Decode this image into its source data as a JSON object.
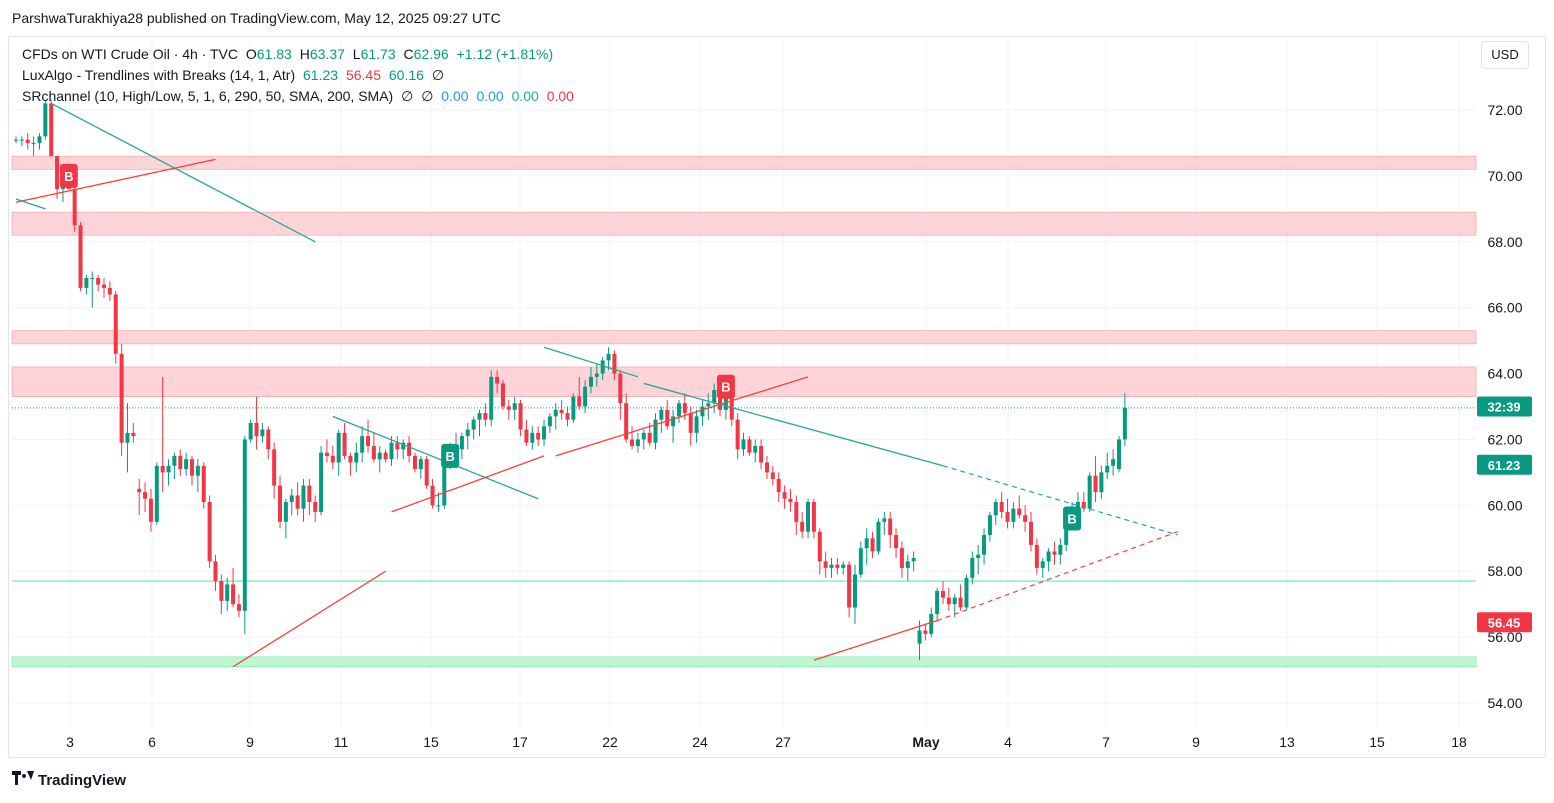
{
  "header": {
    "publish_line": "ParshwaTurakhiya28 published on TradingView.com, May 12, 2025 09:27 UTC"
  },
  "legend": {
    "symbol": "CFDs on WTI Crude Oil · 4h · TVC",
    "open_label": "O",
    "open": "61.83",
    "high_label": "H",
    "high": "63.37",
    "low_label": "L",
    "low": "61.73",
    "close_label": "C",
    "close": "62.96",
    "change": "+1.12 (+1.81%)",
    "ind1_name": "LuxAlgo - Trendlines with Breaks (14, 1, Atr)",
    "ind1_v1": "61.23",
    "ind1_v2": "56.45",
    "ind1_v3": "60.16",
    "ind1_v4": "∅",
    "ind2_name": "SRchannel (10, High/Low, 5, 1, 6, 290, 50, SMA, 200, SMA)",
    "ind2_v1": "∅",
    "ind2_v2": "∅",
    "ind2_v3": "0.00",
    "ind2_v4": "0.00",
    "ind2_v5": "0.00",
    "ind2_v6": "0.00"
  },
  "currency": "USD",
  "footer": {
    "brand": "TradingView"
  },
  "colors": {
    "up": "#089981",
    "down": "#f23645",
    "resistance_zone": "#ffcdd2",
    "support_zone": "#b9f6ca",
    "trend_green": "#26a69a",
    "trend_red": "#f44336",
    "grid": "#f0f3fa"
  },
  "chart_data": {
    "type": "candlestick",
    "timeframe": "4h",
    "currency": "USD",
    "y_ticks": [
      "72.00",
      "70.00",
      "68.00",
      "66.00",
      "64.00",
      "62.00",
      "60.00",
      "58.00",
      "56.00",
      "54.00"
    ],
    "x_ticks": [
      "3",
      "6",
      "9",
      "11",
      "15",
      "17",
      "22",
      "24",
      "27",
      "May",
      "4",
      "7",
      "9",
      "13",
      "15",
      "18"
    ],
    "price_labels": [
      {
        "text": "32:39",
        "value": 63.0,
        "color": "#089981"
      },
      {
        "text": "61.23",
        "value": 61.23,
        "color": "#089981"
      },
      {
        "text": "56.45",
        "value": 56.45,
        "color": "#f23645"
      }
    ],
    "last_price": 62.96,
    "resistance_zones": [
      [
        70.2,
        70.6
      ],
      [
        68.2,
        68.9
      ],
      [
        64.9,
        65.3
      ],
      [
        63.3,
        64.2
      ]
    ],
    "support_zones": [
      [
        55.1,
        55.4
      ]
    ],
    "support_lines": [
      57.7
    ],
    "break_signals": [
      {
        "label": "B",
        "type": "bearish",
        "index": 9,
        "price": 70.0
      },
      {
        "label": "B",
        "type": "bullish",
        "index": 74,
        "price": 61.5
      },
      {
        "label": "B",
        "type": "bearish",
        "index": 121,
        "price": 63.6
      },
      {
        "label": "B",
        "type": "bullish",
        "index": 180,
        "price": 59.6
      }
    ],
    "candles": [
      [
        71.1,
        71.2,
        71.0,
        71.1
      ],
      [
        71.1,
        71.2,
        70.9,
        71.1
      ],
      [
        71.1,
        71.3,
        70.8,
        71.0
      ],
      [
        71.0,
        71.2,
        70.6,
        71.0
      ],
      [
        71.0,
        71.3,
        70.8,
        71.2
      ],
      [
        71.2,
        72.3,
        71.1,
        72.2
      ],
      [
        72.2,
        72.3,
        70.6,
        70.6
      ],
      [
        70.6,
        70.6,
        69.3,
        69.6
      ],
      [
        69.6,
        70.2,
        69.2,
        70.1
      ],
      [
        70.1,
        70.1,
        69.6,
        69.6
      ],
      [
        69.6,
        69.8,
        68.3,
        68.5
      ],
      [
        68.5,
        68.6,
        66.5,
        66.6
      ],
      [
        66.6,
        67.0,
        66.4,
        66.9
      ],
      [
        66.9,
        67.1,
        66.0,
        66.9
      ],
      [
        66.9,
        67.0,
        66.5,
        66.7
      ],
      [
        66.7,
        66.9,
        66.3,
        66.6
      ],
      [
        66.6,
        66.8,
        66.2,
        66.4
      ],
      [
        66.4,
        66.5,
        64.3,
        64.6
      ],
      [
        64.6,
        64.9,
        61.5,
        61.9
      ],
      [
        61.9,
        63.1,
        61.0,
        62.2
      ],
      [
        62.2,
        62.5,
        61.9,
        62.1
      ],
      [
        60.5,
        60.8,
        59.7,
        60.4
      ],
      [
        60.4,
        60.7,
        59.8,
        60.2
      ],
      [
        60.2,
        60.5,
        59.2,
        59.5
      ],
      [
        59.5,
        61.3,
        59.4,
        61.2
      ],
      [
        61.2,
        63.9,
        60.4,
        61.0
      ],
      [
        61.0,
        61.4,
        60.6,
        61.2
      ],
      [
        61.2,
        61.6,
        60.8,
        61.5
      ],
      [
        61.5,
        61.7,
        60.9,
        61.1
      ],
      [
        61.1,
        61.6,
        60.9,
        61.4
      ],
      [
        61.4,
        61.5,
        60.6,
        60.9
      ],
      [
        60.9,
        61.4,
        60.4,
        61.2
      ],
      [
        61.2,
        61.3,
        59.9,
        60.1
      ],
      [
        60.1,
        60.3,
        58.1,
        58.3
      ],
      [
        58.3,
        58.5,
        57.4,
        57.7
      ],
      [
        57.7,
        57.9,
        56.7,
        57.1
      ],
      [
        57.1,
        57.8,
        56.8,
        57.6
      ],
      [
        57.6,
        58.1,
        56.9,
        57.0
      ],
      [
        57.0,
        57.3,
        56.6,
        56.8
      ],
      [
        56.8,
        62.1,
        56.1,
        62.0
      ],
      [
        62.0,
        62.6,
        61.9,
        62.5
      ],
      [
        62.5,
        63.3,
        61.7,
        62.1
      ],
      [
        62.1,
        62.5,
        61.9,
        62.3
      ],
      [
        62.3,
        62.4,
        61.4,
        61.7
      ],
      [
        61.7,
        61.9,
        60.2,
        60.6
      ],
      [
        60.6,
        60.9,
        59.3,
        59.5
      ],
      [
        59.5,
        60.2,
        59.0,
        60.1
      ],
      [
        60.1,
        60.5,
        59.7,
        60.3
      ],
      [
        60.3,
        60.7,
        59.7,
        59.9
      ],
      [
        59.9,
        60.8,
        59.5,
        60.6
      ],
      [
        60.6,
        60.8,
        59.7,
        60.1
      ],
      [
        60.1,
        60.3,
        59.5,
        59.8
      ],
      [
        59.8,
        61.8,
        59.7,
        61.6
      ],
      [
        61.6,
        62.0,
        61.3,
        61.5
      ],
      [
        61.5,
        61.8,
        61.1,
        61.3
      ],
      [
        61.3,
        62.3,
        60.9,
        62.2
      ],
      [
        62.2,
        62.5,
        61.4,
        61.5
      ],
      [
        61.5,
        61.6,
        60.9,
        61.3
      ],
      [
        61.3,
        61.9,
        61.0,
        61.6
      ],
      [
        61.6,
        62.4,
        61.3,
        62.1
      ],
      [
        62.1,
        62.6,
        61.6,
        61.8
      ],
      [
        61.8,
        62.2,
        61.3,
        61.4
      ],
      [
        61.4,
        61.8,
        61.0,
        61.6
      ],
      [
        61.6,
        61.7,
        61.3,
        61.4
      ],
      [
        61.4,
        62.1,
        61.2,
        61.9
      ],
      [
        61.9,
        62.1,
        61.4,
        61.7
      ],
      [
        61.7,
        62.0,
        61.4,
        61.9
      ],
      [
        61.9,
        62.1,
        61.3,
        61.5
      ],
      [
        61.5,
        61.6,
        61.0,
        61.1
      ],
      [
        61.1,
        61.5,
        60.8,
        61.4
      ],
      [
        61.4,
        61.5,
        60.5,
        60.6
      ],
      [
        60.6,
        60.8,
        59.9,
        60.0
      ],
      [
        60.0,
        60.4,
        59.8,
        60.0
      ],
      [
        60.0,
        61.4,
        59.9,
        61.3
      ],
      [
        61.3,
        61.9,
        61.1,
        61.8
      ],
      [
        61.8,
        62.2,
        61.3,
        61.7
      ],
      [
        61.7,
        62.2,
        61.4,
        62.1
      ],
      [
        62.1,
        62.5,
        61.7,
        62.3
      ],
      [
        62.3,
        62.7,
        62.0,
        62.6
      ],
      [
        62.6,
        62.9,
        62.1,
        62.8
      ],
      [
        62.8,
        63.1,
        62.4,
        62.6
      ],
      [
        62.6,
        64.1,
        62.4,
        63.9
      ],
      [
        63.9,
        64.1,
        63.4,
        63.7
      ],
      [
        63.7,
        63.8,
        62.9,
        63.0
      ],
      [
        63.0,
        63.2,
        62.6,
        62.9
      ],
      [
        62.9,
        63.3,
        62.6,
        63.1
      ],
      [
        63.1,
        63.2,
        62.1,
        62.3
      ],
      [
        62.3,
        62.6,
        61.8,
        61.9
      ],
      [
        61.9,
        62.4,
        61.7,
        62.2
      ],
      [
        62.2,
        62.4,
        61.8,
        62.0
      ],
      [
        62.0,
        62.6,
        61.8,
        62.4
      ],
      [
        62.4,
        62.8,
        62.2,
        62.7
      ],
      [
        62.7,
        63.1,
        62.3,
        62.9
      ],
      [
        62.9,
        63.2,
        62.6,
        62.8
      ],
      [
        62.8,
        63.0,
        62.4,
        62.6
      ],
      [
        62.6,
        63.4,
        62.5,
        63.3
      ],
      [
        63.3,
        63.9,
        62.9,
        63.0
      ],
      [
        63.0,
        63.8,
        62.8,
        63.6
      ],
      [
        63.6,
        64.2,
        63.4,
        63.9
      ],
      [
        63.9,
        64.3,
        63.6,
        64.0
      ],
      [
        64.0,
        64.5,
        63.8,
        64.4
      ],
      [
        64.4,
        64.8,
        64.1,
        64.6
      ],
      [
        64.6,
        64.7,
        63.8,
        64.0
      ],
      [
        64.0,
        64.1,
        62.6,
        63.1
      ],
      [
        63.1,
        63.4,
        61.9,
        62.0
      ],
      [
        62.0,
        62.4,
        61.7,
        61.8
      ],
      [
        61.8,
        62.2,
        61.6,
        62.0
      ],
      [
        62.0,
        62.3,
        61.7,
        62.2
      ],
      [
        62.2,
        62.5,
        61.8,
        61.9
      ],
      [
        61.9,
        62.8,
        61.7,
        62.6
      ],
      [
        62.6,
        63.0,
        62.2,
        62.9
      ],
      [
        62.9,
        63.2,
        62.3,
        62.4
      ],
      [
        62.4,
        62.9,
        61.9,
        62.7
      ],
      [
        62.7,
        63.2,
        62.5,
        63.1
      ],
      [
        63.1,
        63.4,
        62.6,
        62.8
      ],
      [
        62.8,
        63.0,
        61.8,
        62.2
      ],
      [
        62.2,
        62.9,
        61.9,
        62.7
      ],
      [
        62.7,
        63.2,
        62.4,
        63.0
      ],
      [
        63.0,
        63.4,
        62.6,
        63.1
      ],
      [
        63.1,
        63.7,
        62.8,
        63.5
      ],
      [
        63.5,
        63.6,
        62.7,
        62.9
      ],
      [
        62.9,
        63.5,
        62.6,
        63.3
      ],
      [
        63.3,
        63.6,
        62.4,
        62.6
      ],
      [
        62.6,
        62.8,
        61.4,
        61.7
      ],
      [
        61.7,
        62.2,
        61.5,
        62.0
      ],
      [
        62.0,
        62.1,
        61.5,
        61.6
      ],
      [
        61.6,
        62.0,
        61.3,
        61.8
      ],
      [
        61.8,
        62.0,
        61.1,
        61.3
      ],
      [
        61.3,
        61.5,
        60.8,
        61.0
      ],
      [
        61.0,
        61.2,
        60.6,
        60.8
      ],
      [
        60.8,
        61.0,
        60.1,
        60.4
      ],
      [
        60.4,
        60.6,
        59.9,
        60.2
      ],
      [
        60.2,
        60.5,
        59.8,
        60.1
      ],
      [
        60.1,
        60.3,
        59.1,
        59.5
      ],
      [
        59.5,
        59.8,
        59.0,
        59.2
      ],
      [
        59.2,
        60.2,
        59.0,
        60.1
      ],
      [
        60.1,
        60.2,
        59.0,
        59.2
      ],
      [
        59.2,
        59.3,
        57.9,
        58.3
      ],
      [
        58.3,
        58.6,
        57.8,
        58.1
      ],
      [
        58.1,
        58.4,
        57.8,
        58.2
      ],
      [
        58.2,
        58.4,
        57.9,
        58.1
      ],
      [
        58.1,
        58.3,
        57.9,
        58.2
      ],
      [
        58.2,
        58.3,
        56.6,
        56.9
      ],
      [
        56.9,
        58.2,
        56.4,
        57.9
      ],
      [
        57.9,
        58.9,
        57.8,
        58.7
      ],
      [
        58.7,
        59.3,
        58.2,
        59.0
      ],
      [
        59.0,
        59.2,
        58.4,
        58.6
      ],
      [
        58.6,
        59.6,
        58.5,
        59.5
      ],
      [
        59.5,
        59.8,
        59.1,
        59.6
      ],
      [
        59.6,
        59.8,
        58.7,
        59.1
      ],
      [
        59.1,
        59.3,
        58.4,
        58.7
      ],
      [
        58.7,
        58.9,
        57.8,
        58.1
      ],
      [
        58.1,
        58.5,
        57.7,
        58.3
      ],
      [
        58.3,
        58.6,
        58.0,
        58.4
      ],
      [
        55.8,
        56.5,
        55.3,
        56.2
      ],
      [
        56.2,
        56.4,
        55.9,
        56.1
      ],
      [
        56.1,
        56.9,
        56.0,
        56.7
      ],
      [
        56.7,
        57.5,
        56.5,
        57.4
      ],
      [
        57.4,
        57.7,
        57.0,
        57.2
      ],
      [
        57.2,
        57.5,
        56.8,
        57.0
      ],
      [
        57.0,
        57.3,
        56.6,
        57.2
      ],
      [
        57.2,
        57.6,
        56.8,
        56.9
      ],
      [
        56.9,
        57.9,
        56.8,
        57.8
      ],
      [
        57.8,
        58.6,
        57.6,
        58.4
      ],
      [
        58.4,
        58.8,
        57.9,
        58.5
      ],
      [
        58.5,
        59.3,
        58.2,
        59.1
      ],
      [
        59.1,
        59.8,
        58.9,
        59.7
      ],
      [
        59.7,
        60.2,
        59.4,
        60.1
      ],
      [
        60.1,
        60.4,
        59.6,
        59.8
      ],
      [
        59.8,
        60.2,
        59.3,
        59.5
      ],
      [
        59.5,
        60.1,
        59.3,
        59.9
      ],
      [
        59.9,
        60.3,
        59.6,
        59.7
      ],
      [
        59.7,
        60.0,
        59.2,
        59.5
      ],
      [
        59.5,
        59.8,
        58.6,
        58.8
      ],
      [
        58.8,
        59.0,
        57.9,
        58.1
      ],
      [
        58.1,
        58.4,
        57.8,
        58.3
      ],
      [
        58.3,
        58.7,
        58.0,
        58.6
      ],
      [
        58.6,
        58.9,
        58.2,
        58.5
      ],
      [
        58.5,
        59.0,
        58.2,
        58.8
      ],
      [
        58.8,
        59.7,
        58.6,
        59.6
      ],
      [
        59.6,
        60.1,
        59.4,
        59.9
      ],
      [
        59.9,
        60.4,
        59.7,
        60.1
      ],
      [
        60.1,
        60.4,
        59.8,
        59.9
      ],
      [
        59.9,
        61.0,
        59.8,
        60.9
      ],
      [
        60.9,
        61.5,
        60.1,
        60.4
      ],
      [
        60.4,
        61.2,
        60.2,
        61.0
      ],
      [
        61.0,
        61.6,
        60.8,
        61.2
      ],
      [
        61.2,
        61.7,
        60.9,
        61.4
      ],
      [
        61.1,
        62.1,
        61.0,
        62.0
      ],
      [
        62.0,
        63.4,
        61.8,
        62.96
      ]
    ],
    "trendlines": [
      {
        "color": "#26a69a",
        "p1": [
          6,
          72.2
        ],
        "p2": [
          51,
          68.0
        ],
        "dashed_ext": null
      },
      {
        "color": "#f44336",
        "p1": [
          0,
          69.2
        ],
        "p2": [
          34,
          70.5
        ],
        "dashed_ext": null
      },
      {
        "color": "#26a69a",
        "p1": [
          0,
          69.3
        ],
        "p2": [
          5,
          69.0
        ],
        "dashed_ext": null
      },
      {
        "color": "#26a69a",
        "p1": [
          54,
          62.7
        ],
        "p2": [
          89,
          60.2
        ],
        "dashed_ext": null
      },
      {
        "color": "#f44336",
        "p1": [
          37,
          55.1
        ],
        "p2": [
          63,
          58.0
        ],
        "dashed_ext": null
      },
      {
        "color": "#f44336",
        "p1": [
          64,
          59.8
        ],
        "p2": [
          90,
          61.5
        ],
        "dashed_ext": null
      },
      {
        "color": "#f44336",
        "p1": [
          92,
          61.5
        ],
        "p2": [
          135,
          63.9
        ],
        "dashed_ext": null
      },
      {
        "color": "#26a69a",
        "p1": [
          90,
          64.8
        ],
        "p2": [
          106,
          63.9
        ],
        "dashed_ext": null
      },
      {
        "color": "#26a69a",
        "p1": [
          107,
          63.7
        ],
        "p2": [
          158,
          61.2
        ],
        "dashed_ext": [
          198,
          59.1
        ]
      },
      {
        "color": "#f44336",
        "p1": [
          136,
          55.3
        ],
        "p2": [
          157,
          56.5
        ],
        "dashed_ext": [
          198,
          59.2
        ]
      }
    ]
  }
}
